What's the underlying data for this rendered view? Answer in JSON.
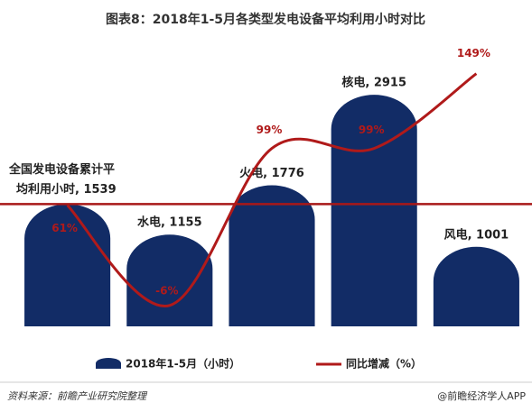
{
  "chart_data": {
    "type": "bar",
    "title": "图表8：2018年1-5月各类型发电设备平均利用小时对比",
    "series": [
      {
        "name": "2018年1-5月（小时）",
        "type": "bar",
        "color": "#122c66",
        "values": [
          1539,
          1155,
          1776,
          2915,
          1001
        ],
        "value_labels": [
          null,
          "水电, 1155",
          "火电, 1776",
          "核电, 2915",
          "风电, 1001"
        ]
      },
      {
        "name": "同比增减（%）",
        "type": "line",
        "axis": "y2",
        "color": "#b01a1a",
        "values": [
          61,
          -6,
          99,
          99,
          149
        ],
        "value_labels": [
          "61%",
          "-6%",
          "99%",
          "99%",
          "149%"
        ]
      }
    ],
    "reference": {
      "value": 1539,
      "label_lines": [
        "全国发电设备累计平",
        "均利用小时, 1539"
      ],
      "color": "#a81818"
    },
    "ylim": [
      0,
      3200
    ],
    "y2lim": [
      -20,
      150
    ],
    "legend": "bottom",
    "source": "资料来源：前瞻产业研究院整理",
    "credit": "@前瞻经济学人APP"
  }
}
